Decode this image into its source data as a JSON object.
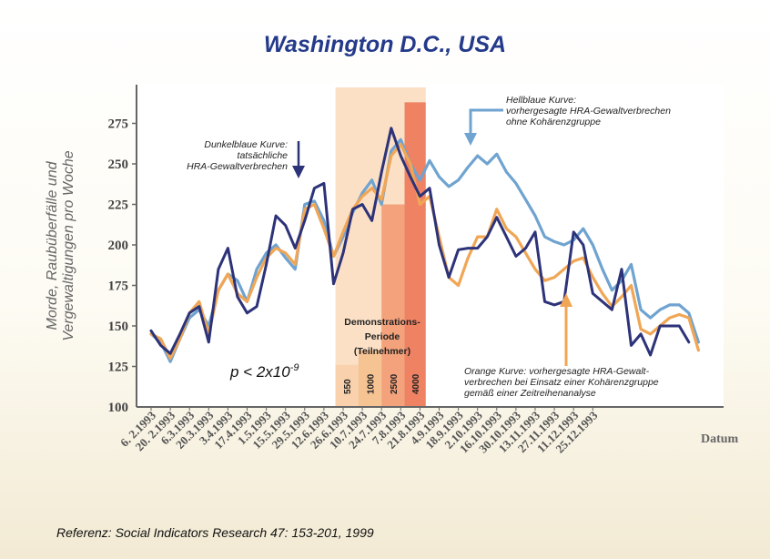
{
  "chart_data": {
    "type": "line",
    "title": "Washington D.C., USA",
    "ylabel_line1": "Morde, Raubüberfälle und",
    "ylabel_line2": "Vergewaltigungen pro Woche",
    "xlabel": "Datum",
    "ylim": [
      100,
      290
    ],
    "yticks": [
      100,
      125,
      150,
      175,
      200,
      225,
      250,
      275
    ],
    "xtick_labels": [
      "6. 2.1993",
      "20. 2.1993",
      "6.3.1993",
      "20.3.1993",
      "3.4.1993",
      "17.4.1993",
      "1.5.1993",
      "15.5.1993",
      "29.5.1993",
      "12.6.1993",
      "26.6.1993",
      "10.7.1993",
      "24.7.1993",
      "7.8.1993",
      "21.8.1993",
      "4.9.1993",
      "18.9.1993",
      "2.10.1993",
      "16.10.1993",
      "30.10.1993",
      "13.11.1993",
      "27.11.1993",
      "11.12.1993",
      "25.12.1993"
    ],
    "week_range": [
      0,
      48
    ],
    "series": [
      {
        "name": "Hellblaue Kurve",
        "color": "#6fa3d0",
        "points": [
          [
            0,
            145
          ],
          [
            1,
            140
          ],
          [
            2,
            128
          ],
          [
            3,
            142
          ],
          [
            4,
            155
          ],
          [
            5,
            160
          ],
          [
            6,
            150
          ],
          [
            7,
            172
          ],
          [
            8,
            182
          ],
          [
            9,
            178
          ],
          [
            10,
            165
          ],
          [
            11,
            185
          ],
          [
            12,
            195
          ],
          [
            13,
            200
          ],
          [
            14,
            192
          ],
          [
            15,
            185
          ],
          [
            16,
            225
          ],
          [
            17,
            227
          ],
          [
            18,
            215
          ],
          [
            19,
            193
          ],
          [
            20,
            205
          ],
          [
            21,
            220
          ],
          [
            22,
            232
          ],
          [
            23,
            240
          ],
          [
            24,
            225
          ],
          [
            25,
            258
          ],
          [
            26,
            265
          ],
          [
            27,
            250
          ],
          [
            28,
            240
          ],
          [
            29,
            252
          ],
          [
            30,
            242
          ],
          [
            31,
            236
          ],
          [
            32,
            240
          ],
          [
            33,
            248
          ],
          [
            34,
            255
          ],
          [
            35,
            250
          ],
          [
            36,
            256
          ],
          [
            37,
            245
          ],
          [
            38,
            238
          ],
          [
            39,
            228
          ],
          [
            40,
            218
          ],
          [
            41,
            205
          ],
          [
            42,
            202
          ],
          [
            43,
            200
          ],
          [
            44,
            203
          ],
          [
            45,
            210
          ],
          [
            46,
            200
          ],
          [
            47,
            185
          ],
          [
            48,
            172
          ],
          [
            49,
            178
          ],
          [
            50,
            188
          ],
          [
            51,
            160
          ],
          [
            52,
            155
          ],
          [
            53,
            160
          ],
          [
            54,
            163
          ],
          [
            55,
            163
          ],
          [
            56,
            158
          ],
          [
            57,
            140
          ]
        ]
      },
      {
        "name": "Orange Kurve",
        "color": "#f0a655",
        "points": [
          [
            0,
            145
          ],
          [
            1,
            142
          ],
          [
            2,
            130
          ],
          [
            3,
            142
          ],
          [
            4,
            158
          ],
          [
            5,
            165
          ],
          [
            6,
            145
          ],
          [
            7,
            172
          ],
          [
            8,
            182
          ],
          [
            9,
            170
          ],
          [
            10,
            165
          ],
          [
            11,
            180
          ],
          [
            12,
            192
          ],
          [
            13,
            198
          ],
          [
            14,
            195
          ],
          [
            15,
            188
          ],
          [
            16,
            222
          ],
          [
            17,
            225
          ],
          [
            18,
            210
          ],
          [
            19,
            193
          ],
          [
            20,
            208
          ],
          [
            21,
            222
          ],
          [
            22,
            230
          ],
          [
            23,
            235
          ],
          [
            24,
            228
          ],
          [
            25,
            255
          ],
          [
            26,
            262
          ],
          [
            27,
            250
          ],
          [
            28,
            225
          ],
          [
            29,
            230
          ],
          [
            30,
            205
          ],
          [
            31,
            180
          ],
          [
            32,
            175
          ],
          [
            33,
            192
          ],
          [
            34,
            205
          ],
          [
            35,
            205
          ],
          [
            36,
            222
          ],
          [
            37,
            210
          ],
          [
            38,
            205
          ],
          [
            39,
            195
          ],
          [
            40,
            185
          ],
          [
            41,
            178
          ],
          [
            42,
            180
          ],
          [
            43,
            185
          ],
          [
            44,
            190
          ],
          [
            45,
            192
          ],
          [
            46,
            180
          ],
          [
            47,
            170
          ],
          [
            48,
            162
          ],
          [
            49,
            168
          ],
          [
            50,
            175
          ],
          [
            51,
            148
          ],
          [
            52,
            145
          ],
          [
            53,
            150
          ],
          [
            54,
            155
          ],
          [
            55,
            157
          ],
          [
            56,
            155
          ],
          [
            57,
            135
          ]
        ]
      },
      {
        "name": "Dunkelblaue Kurve",
        "color": "#2d3379",
        "points": [
          [
            0,
            147
          ],
          [
            1,
            138
          ],
          [
            2,
            133
          ],
          [
            3,
            145
          ],
          [
            4,
            158
          ],
          [
            5,
            162
          ],
          [
            6,
            140
          ],
          [
            7,
            185
          ],
          [
            8,
            198
          ],
          [
            9,
            168
          ],
          [
            10,
            158
          ],
          [
            11,
            162
          ],
          [
            12,
            188
          ],
          [
            13,
            218
          ],
          [
            14,
            212
          ],
          [
            15,
            198
          ],
          [
            16,
            215
          ],
          [
            17,
            235
          ],
          [
            18,
            238
          ],
          [
            19,
            176
          ],
          [
            20,
            195
          ],
          [
            21,
            222
          ],
          [
            22,
            225
          ],
          [
            23,
            215
          ],
          [
            24,
            245
          ],
          [
            25,
            272
          ],
          [
            26,
            255
          ],
          [
            27,
            242
          ],
          [
            28,
            230
          ],
          [
            29,
            235
          ],
          [
            30,
            200
          ],
          [
            31,
            180
          ],
          [
            32,
            197
          ],
          [
            33,
            198
          ],
          [
            34,
            198
          ],
          [
            35,
            205
          ],
          [
            36,
            217
          ],
          [
            37,
            205
          ],
          [
            38,
            193
          ],
          [
            39,
            198
          ],
          [
            40,
            208
          ],
          [
            41,
            165
          ],
          [
            42,
            163
          ],
          [
            43,
            165
          ],
          [
            44,
            208
          ],
          [
            45,
            200
          ],
          [
            46,
            170
          ],
          [
            47,
            165
          ],
          [
            48,
            160
          ],
          [
            49,
            185
          ],
          [
            50,
            138
          ],
          [
            51,
            145
          ],
          [
            52,
            132
          ],
          [
            53,
            150
          ],
          [
            54,
            150
          ],
          [
            55,
            150
          ],
          [
            56,
            140
          ]
        ]
      }
    ]
  },
  "demonstration_period": {
    "label_line1": "Demonstrations-",
    "label_line2": "Periode",
    "label_line3": "(Teilnehmer)",
    "participants": [
      "550",
      "1000",
      "2500",
      "4000"
    ],
    "band_colors": [
      "#f9d2ad",
      "#f6c393",
      "#f3a27c",
      "#ee8263"
    ]
  },
  "annotations": {
    "dark_line1": "Dunkelblaue Kurve:",
    "dark_line2": "tatsächliche",
    "dark_line3": "HRA-Gewaltverbrechen",
    "light_line1": "Hellblaue Kurve:",
    "light_line2": "vorhergesagte HRA-Gewaltverbrechen",
    "light_line3": "ohne Kohärenzgruppe",
    "orange_line1": "Orange Kurve: vorhergesagte HRA-Gewalt-",
    "orange_line2": "verbrechen bei Einsatz einer Kohärenzgruppe",
    "orange_line3": "gemäß einer Zeitreihenanalyse",
    "p_base": "p < 2x10",
    "p_exp": "-9"
  },
  "reference": "Referenz: Social Indicators Research 47: 153-201, 1999"
}
